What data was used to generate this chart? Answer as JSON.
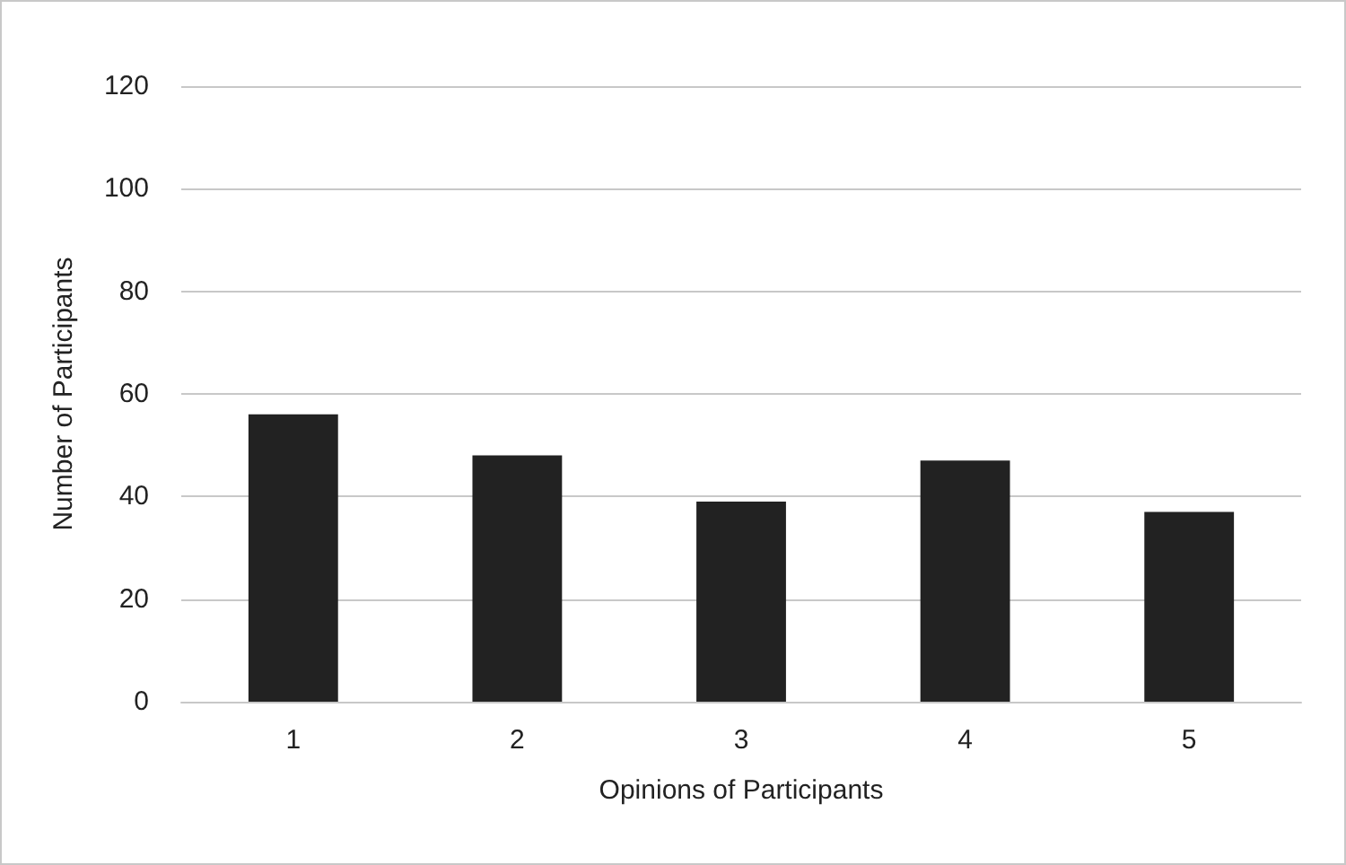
{
  "chart_data": {
    "type": "bar",
    "xlabel": "Opinions of Participants",
    "ylabel": "Number of Participants",
    "categories": [
      "1",
      "2",
      "3",
      "4",
      "5"
    ],
    "series": [
      {
        "color": "#222222",
        "values": [
          56,
          48,
          39,
          47,
          37
        ]
      }
    ],
    "ylim": [
      0,
      120
    ],
    "yticks": [
      0,
      20,
      40,
      60,
      80,
      100,
      120
    ],
    "grid": "y"
  }
}
